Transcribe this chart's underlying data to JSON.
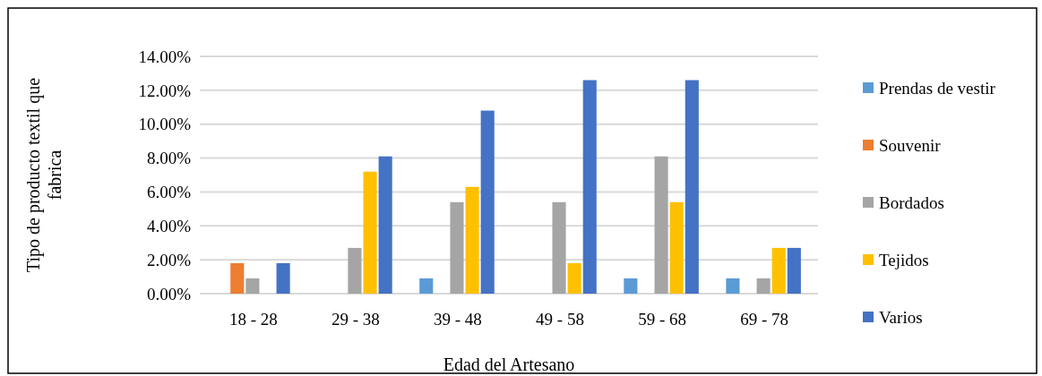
{
  "chart_data": {
    "type": "bar",
    "xlabel": "Edad del Artesano",
    "ylabel": "Tipo de producto textil que fabrica",
    "categories": [
      "18 - 28",
      "29 - 38",
      "39 - 48",
      "49 - 58",
      "59 - 68",
      "69 - 78"
    ],
    "series": [
      {
        "name": "Prendas de vestir",
        "color": "#5b9bd5",
        "values": [
          0,
          0,
          0.9,
          0,
          0.9,
          0.9
        ]
      },
      {
        "name": "Souvenir",
        "color": "#ed7d31",
        "values": [
          1.8,
          0,
          0,
          0,
          0,
          0
        ]
      },
      {
        "name": "Bordados",
        "color": "#a5a5a5",
        "values": [
          0.9,
          2.7,
          5.4,
          5.4,
          8.1,
          0.9
        ]
      },
      {
        "name": "Tejidos",
        "color": "#ffc000",
        "values": [
          0,
          7.2,
          6.3,
          1.8,
          5.4,
          2.7
        ]
      },
      {
        "name": "Varios",
        "color": "#4472c4",
        "values": [
          1.8,
          8.1,
          10.8,
          12.6,
          12.6,
          2.7
        ]
      }
    ],
    "ylim": [
      0,
      14
    ],
    "yticks": [
      {
        "value": 0,
        "label": "0.00%"
      },
      {
        "value": 2,
        "label": "2.00%"
      },
      {
        "value": 4,
        "label": "4.00%"
      },
      {
        "value": 6,
        "label": "6.00%"
      },
      {
        "value": 8,
        "label": "8.00%"
      },
      {
        "value": 10,
        "label": "10.00%"
      },
      {
        "value": 12,
        "label": "12.00%"
      },
      {
        "value": 14,
        "label": "14.00%"
      }
    ],
    "grid": "y",
    "legend": "right"
  }
}
